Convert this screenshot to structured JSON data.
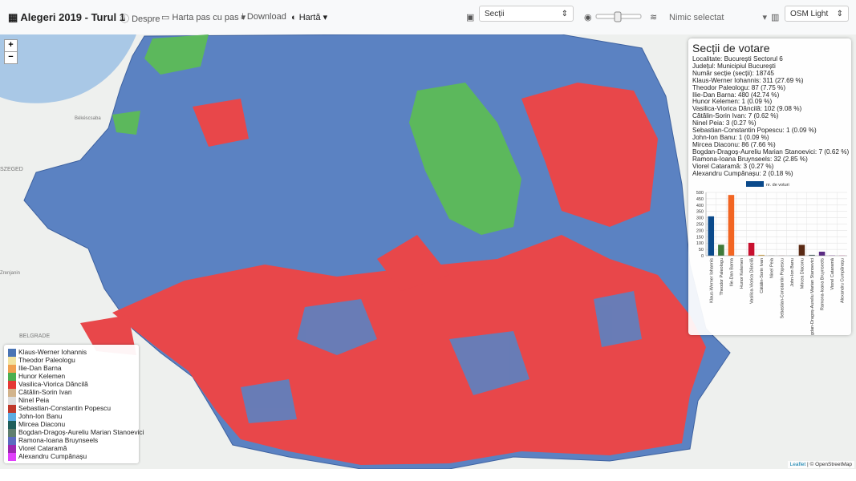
{
  "navbar": {
    "brand": "Alegeri 2019 - Turul 1",
    "about": "Despre",
    "step_map": "Harta pas cu pas",
    "download": "Download",
    "map_mode": "Hartă",
    "level_select": "Secții",
    "layer_select": "Nimic selectat",
    "tiles_select": "OSM Light"
  },
  "map": {
    "zoom_in": "+",
    "zoom_out": "−",
    "place_labels": [
      "Békéscsaba",
      "SZEGED",
      "Zrenjanin",
      "BELGRADE"
    ],
    "attribution_leaflet": "Leaflet",
    "attribution_osm": "| © OpenStreetMap"
  },
  "info_panel": {
    "title": "Secții de votare",
    "lines": [
      "Localitate: București Sectorul 6",
      "Județul: Municipiul București",
      "Număr secție (secții): 18745",
      "Klaus-Werner Iohannis: 311 (27.69 %)",
      "Theodor Paleologu: 87 (7.75 %)",
      "Ilie-Dan Barna: 480 (42.74 %)",
      "Hunor Kelemen: 1 (0.09 %)",
      "Vasilica-Viorica Dăncilă: 102 (9.08 %)",
      "Cătălin-Sorin Ivan: 7 (0.62 %)",
      "Ninel Peia: 3 (0.27 %)",
      "Sebastian-Constantin Popescu: 1 (0.09 %)",
      "John-Ion Banu: 1 (0.09 %)",
      "Mircea Diaconu: 86 (7.66 %)",
      "Bogdan-Dragoș-Aureliu Marian Stanoevici: 7 (0.62 %)",
      "Ramona-Ioana Bruynseels: 32 (2.85 %)",
      "Viorel Cataramă: 3 (0.27 %)",
      "Alexandru Cumpănașu: 2 (0.18 %)"
    ]
  },
  "chart_data": {
    "type": "bar",
    "categories": [
      "Klaus-Werner Iohannis",
      "Theodor Paleologu",
      "Ilie-Dan Barna",
      "Hunor Kelemen",
      "Vasilica-Viorica Dăncilă",
      "Cătălin-Sorin Ivan",
      "Ninel Peia",
      "Sebastian-Constantin Popescu",
      "John-Ion Banu",
      "Mircea Diaconu",
      "Bogdan-Dragoș-Aureliu Marian Stanoevici",
      "Ramona-Ioana Bruynseels",
      "Viorel Cataramă",
      "Alexandru Cumpănașu"
    ],
    "series": [
      {
        "name": "nr. de voturi",
        "color": "#0b4a8b",
        "values": [
          311,
          87,
          480,
          1,
          102,
          7,
          3,
          1,
          1,
          86,
          7,
          32,
          3,
          2
        ],
        "colors": [
          "#0b4a8b",
          "#3f7a3a",
          "#f26522",
          "#3aa53a",
          "#c8102e",
          "#d6a84a",
          "#9e9e9e",
          "#9b2335",
          "#6cb4d8",
          "#5a2a14",
          "#3f5a5a",
          "#5b2c83",
          "#8e44ad",
          "#e64aa0"
        ]
      }
    ],
    "ylim": [
      0,
      500
    ],
    "yticks": [
      0,
      50,
      100,
      150,
      200,
      250,
      300,
      350,
      400,
      450,
      500
    ],
    "grid": true
  },
  "map_legend": {
    "items": [
      {
        "name": "Klaus-Werner Iohannis",
        "color": "#4a74b4"
      },
      {
        "name": "Theodor Paleologu",
        "color": "#f2e3a0"
      },
      {
        "name": "Ilie-Dan Barna",
        "color": "#f0a050"
      },
      {
        "name": "Hunor Kelemen",
        "color": "#4caf50"
      },
      {
        "name": "Vasilica-Viorica Dăncilă",
        "color": "#e53935"
      },
      {
        "name": "Cătălin-Sorin Ivan",
        "color": "#d2b48c"
      },
      {
        "name": "Ninel Peia",
        "color": "#dddddd"
      },
      {
        "name": "Sebastian-Constantin Popescu",
        "color": "#c0392b"
      },
      {
        "name": "John-Ion Banu",
        "color": "#5dade2"
      },
      {
        "name": "Mircea Diaconu",
        "color": "#1f5f5b"
      },
      {
        "name": "Bogdan-Dragoș-Aureliu Marian Stanoevici",
        "color": "#5f7f6f"
      },
      {
        "name": "Ramona-Ioana Bruynseels",
        "color": "#5c6bc0"
      },
      {
        "name": "Viorel Cataramă",
        "color": "#9c27b0"
      },
      {
        "name": "Alexandru Cumpănașu",
        "color": "#e040fb"
      }
    ]
  }
}
